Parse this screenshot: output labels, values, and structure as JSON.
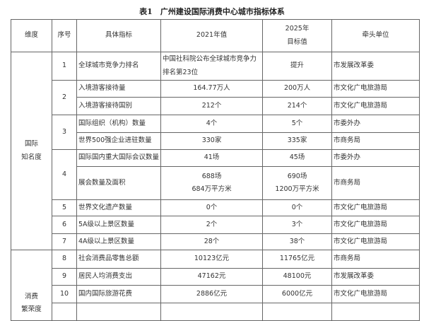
{
  "title": "表1　广州建设国际消费中心城市指标体系",
  "headers": {
    "dimension": "维度",
    "index": "序号",
    "indicator": "具体指标",
    "value_2021": "2021年值",
    "target_2025_line1": "2025年",
    "target_2025_line2": "目标值",
    "lead": "牵头单位"
  },
  "dimensions": [
    "国际\n知名度",
    "消费\n繁荣度"
  ],
  "dimension_lines": [
    [
      "国际",
      "知名度"
    ],
    [
      "消费",
      "繁荣度"
    ]
  ],
  "rows": [
    {
      "no": "1",
      "indicator": "全球城市竞争力排名",
      "v2021": "中国社科院公布全球城市竞争力排名第23位",
      "v2025": "提升",
      "lead": "市发展改革委"
    },
    {
      "no": "2",
      "indicator": "入境游客接待量",
      "v2021": "164.77万人",
      "v2025": "200万人",
      "lead": "市文化广电旅游局"
    },
    {
      "no": "",
      "indicator": "入境游客接待国别",
      "v2021": "212个",
      "v2025": "214个",
      "lead": "市文化广电旅游局"
    },
    {
      "no": "3",
      "indicator": "国际组织（机构）数量",
      "v2021": "4个",
      "v2025": "5个",
      "lead": "市委外办"
    },
    {
      "no": "",
      "indicator": "世界500强企业进驻数量",
      "v2021": "330家",
      "v2025": "335家",
      "lead": "市商务局"
    },
    {
      "no": "4",
      "indicator": "国际国内重大国际会议数量",
      "v2021": "41场",
      "v2025": "45场",
      "lead": "市委外办"
    },
    {
      "no": "",
      "indicator": "展会数量及面积",
      "v2021": "688场",
      "v2021b": "684万平方米",
      "v2025": "690场",
      "v2025b": "1200万平方米",
      "lead": "市商务局"
    },
    {
      "no": "5",
      "indicator": "世界文化遗产数量",
      "v2021": "0个",
      "v2025": "0个",
      "lead": "市文化广电旅游局"
    },
    {
      "no": "6",
      "indicator": "5A级以上景区数量",
      "v2021": "2个",
      "v2025": "3个",
      "lead": "市文化广电旅游局"
    },
    {
      "no": "7",
      "indicator": "4A级以上景区数量",
      "v2021": "28个",
      "v2025": "38个",
      "lead": "市文化广电旅游局"
    },
    {
      "no": "8",
      "indicator": "社会消费品零售总额",
      "v2021": "10123亿元",
      "v2025": "11765亿元",
      "lead": "市商务局"
    },
    {
      "no": "9",
      "indicator": "居民人均消费支出",
      "v2021": "47162元",
      "v2025": "48100元",
      "lead": "市发展改革委"
    },
    {
      "no": "10",
      "indicator": "国内国际旅游花费",
      "v2021": "2886亿元",
      "v2025": "6000亿元",
      "lead": "市文化广电旅游局"
    }
  ]
}
